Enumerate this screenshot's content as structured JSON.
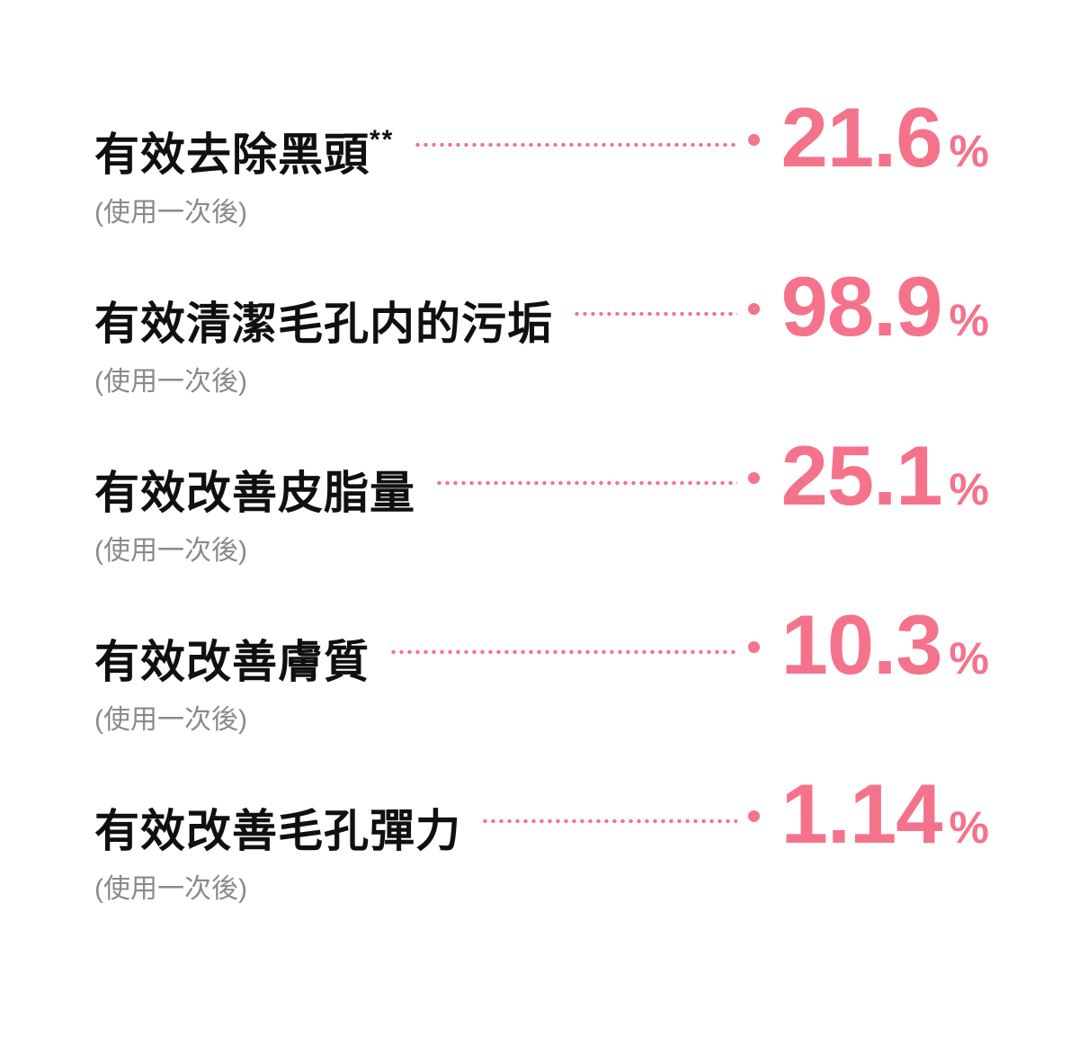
{
  "colors": {
    "accent": "#F4738B",
    "title": "#101010",
    "note": "#8A8A8A",
    "background": "#FFFFFF"
  },
  "rows": [
    {
      "label": "有效去除黑頭",
      "superscript": "**",
      "note": "(使用一次後)",
      "value": "21.6",
      "unit": "%"
    },
    {
      "label": "有效清潔毛孔内的污垢",
      "superscript": "",
      "note": "(使用一次後)",
      "value": "98.9",
      "unit": "%"
    },
    {
      "label": "有效改善皮脂量",
      "superscript": "",
      "note": "(使用一次後)",
      "value": "25.1",
      "unit": "%"
    },
    {
      "label": "有效改善膚質",
      "superscript": "",
      "note": "(使用一次後)",
      "value": "10.3",
      "unit": "%"
    },
    {
      "label": "有效改善毛孔彈力",
      "superscript": "",
      "note": "(使用一次後)",
      "value": "1.14",
      "unit": "%"
    }
  ],
  "chart_data": {
    "type": "table",
    "title": "",
    "categories": [
      "有效去除黑頭**",
      "有效清潔毛孔内的污垢",
      "有效改善皮脂量",
      "有效改善膚質",
      "有效改善毛孔彈力"
    ],
    "values": [
      21.6,
      98.9,
      25.1,
      10.3,
      1.14
    ],
    "unit": "%",
    "per_row_note": "(使用一次後)",
    "legend_position": "none",
    "grid": false
  }
}
